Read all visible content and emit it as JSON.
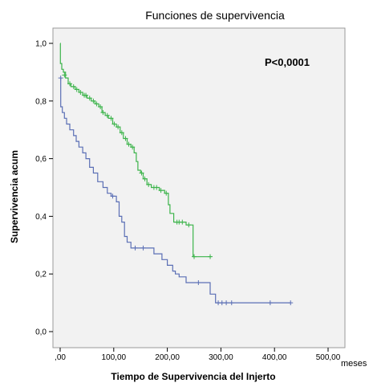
{
  "chart_data": {
    "type": "line",
    "title": "Funciones de supervivencia",
    "xlabel": "Tiempo de Supervivencia del Injerto",
    "xunit": "meses",
    "ylabel": "Supervivencia acum",
    "annotation": "P<0,0001",
    "xlim": [
      0,
      500
    ],
    "ylim": [
      0,
      1
    ],
    "xticks": [
      0,
      100,
      200,
      300,
      400,
      500
    ],
    "xtick_labels": [
      ",00",
      "100,00",
      "200,00",
      "300,00",
      "400,00",
      "500,00"
    ],
    "yticks": [
      0,
      0.2,
      0.4,
      0.6,
      0.8,
      1.0
    ],
    "ytick_labels": [
      "0,0",
      "0,2",
      "0,4",
      "0,6",
      "0,8",
      "1,0"
    ],
    "grid": false,
    "plot_background": "#f2f2f2",
    "series": [
      {
        "color": "#3cb44b",
        "step": [
          [
            0,
            1.0
          ],
          [
            0.5,
            0.93
          ],
          [
            3,
            0.91
          ],
          [
            6,
            0.9
          ],
          [
            10,
            0.88
          ],
          [
            15,
            0.86
          ],
          [
            20,
            0.85
          ],
          [
            28,
            0.84
          ],
          [
            35,
            0.83
          ],
          [
            42,
            0.82
          ],
          [
            50,
            0.81
          ],
          [
            58,
            0.8
          ],
          [
            65,
            0.79
          ],
          [
            72,
            0.78
          ],
          [
            78,
            0.76
          ],
          [
            84,
            0.75
          ],
          [
            90,
            0.74
          ],
          [
            98,
            0.72
          ],
          [
            105,
            0.71
          ],
          [
            112,
            0.69
          ],
          [
            118,
            0.67
          ],
          [
            125,
            0.65
          ],
          [
            132,
            0.64
          ],
          [
            138,
            0.62
          ],
          [
            142,
            0.59
          ],
          [
            145,
            0.56
          ],
          [
            150,
            0.55
          ],
          [
            155,
            0.53
          ],
          [
            162,
            0.51
          ],
          [
            170,
            0.5
          ],
          [
            185,
            0.49
          ],
          [
            195,
            0.48
          ],
          [
            202,
            0.44
          ],
          [
            205,
            0.41
          ],
          [
            212,
            0.38
          ],
          [
            235,
            0.37
          ],
          [
            248,
            0.26
          ],
          [
            282,
            0.26
          ]
        ],
        "censored": [
          [
            8,
            0.89
          ],
          [
            18,
            0.86
          ],
          [
            25,
            0.85
          ],
          [
            31,
            0.84
          ],
          [
            38,
            0.83
          ],
          [
            45,
            0.82
          ],
          [
            48,
            0.82
          ],
          [
            55,
            0.81
          ],
          [
            62,
            0.8
          ],
          [
            68,
            0.79
          ],
          [
            75,
            0.78
          ],
          [
            80,
            0.76
          ],
          [
            88,
            0.75
          ],
          [
            95,
            0.74
          ],
          [
            101,
            0.72
          ],
          [
            108,
            0.71
          ],
          [
            115,
            0.69
          ],
          [
            122,
            0.67
          ],
          [
            128,
            0.65
          ],
          [
            135,
            0.64
          ],
          [
            152,
            0.55
          ],
          [
            158,
            0.53
          ],
          [
            165,
            0.51
          ],
          [
            175,
            0.5
          ],
          [
            180,
            0.5
          ],
          [
            188,
            0.49
          ],
          [
            198,
            0.48
          ],
          [
            218,
            0.38
          ],
          [
            222,
            0.38
          ],
          [
            228,
            0.38
          ],
          [
            240,
            0.37
          ],
          [
            250,
            0.26
          ],
          [
            280,
            0.26
          ]
        ]
      },
      {
        "color": "#5b6fb5",
        "step": [
          [
            0,
            0.88
          ],
          [
            1,
            0.78
          ],
          [
            4,
            0.76
          ],
          [
            8,
            0.74
          ],
          [
            12,
            0.72
          ],
          [
            18,
            0.7
          ],
          [
            25,
            0.68
          ],
          [
            30,
            0.66
          ],
          [
            35,
            0.64
          ],
          [
            42,
            0.62
          ],
          [
            48,
            0.6
          ],
          [
            55,
            0.57
          ],
          [
            62,
            0.55
          ],
          [
            70,
            0.52
          ],
          [
            80,
            0.5
          ],
          [
            88,
            0.48
          ],
          [
            95,
            0.47
          ],
          [
            105,
            0.45
          ],
          [
            110,
            0.4
          ],
          [
            115,
            0.38
          ],
          [
            120,
            0.33
          ],
          [
            125,
            0.31
          ],
          [
            132,
            0.29
          ],
          [
            175,
            0.27
          ],
          [
            190,
            0.25
          ],
          [
            200,
            0.23
          ],
          [
            210,
            0.21
          ],
          [
            215,
            0.2
          ],
          [
            222,
            0.19
          ],
          [
            235,
            0.17
          ],
          [
            280,
            0.13
          ],
          [
            290,
            0.1
          ],
          [
            430,
            0.1
          ]
        ],
        "censored": [
          [
            1,
            0.88
          ],
          [
            98,
            0.47
          ],
          [
            140,
            0.29
          ],
          [
            155,
            0.29
          ],
          [
            258,
            0.17
          ],
          [
            295,
            0.1
          ],
          [
            302,
            0.1
          ],
          [
            310,
            0.1
          ],
          [
            320,
            0.1
          ],
          [
            392,
            0.1
          ],
          [
            430,
            0.1
          ]
        ]
      }
    ]
  }
}
